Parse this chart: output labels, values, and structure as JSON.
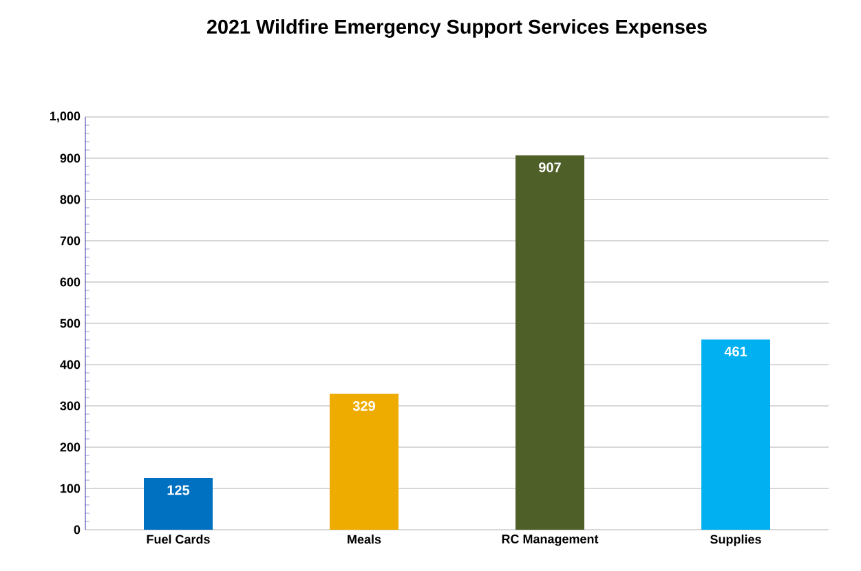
{
  "chart_data": {
    "type": "bar",
    "title": "2021 Wildfire Emergency Support Services Expenses",
    "categories": [
      "Fuel Cards",
      "Meals",
      "RC Management",
      "Supplies"
    ],
    "values": [
      125,
      329,
      907,
      461
    ],
    "colors": [
      "#0070c0",
      "#eeab00",
      "#4e5f28",
      "#00b0f0"
    ],
    "ylim": [
      0,
      1000
    ],
    "yticks": [
      0,
      100,
      200,
      300,
      400,
      500,
      600,
      700,
      800,
      900,
      {
        "value": 1000,
        "label": "1,000"
      }
    ],
    "grid": "y",
    "data_labels": true
  }
}
